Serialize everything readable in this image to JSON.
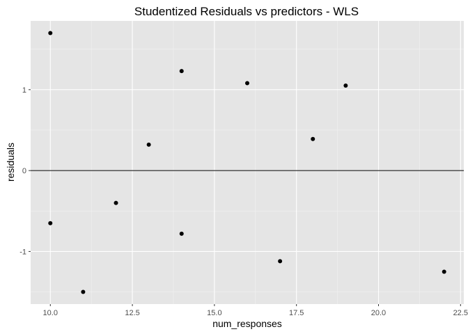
{
  "chart_data": {
    "type": "scatter",
    "title": "Studentized Residuals vs predictors - WLS",
    "xlabel": "num_responses",
    "ylabel": "residuals",
    "xlim": [
      9.4,
      22.6
    ],
    "ylim": [
      -1.65,
      1.85
    ],
    "x_ticks": [
      10.0,
      12.5,
      15.0,
      17.5,
      20.0,
      22.5
    ],
    "x_tick_labels": [
      "10.0",
      "12.5",
      "15.0",
      "17.5",
      "20.0",
      "22.5"
    ],
    "y_ticks": [
      -1,
      0,
      1
    ],
    "y_tick_labels": [
      "-1",
      "0",
      "1"
    ],
    "hline": 0,
    "grid": true,
    "colors": {
      "panel_background": "#e5e5e5",
      "grid_major": "#ffffff",
      "grid_minor": "#f2f2f2",
      "point": "#000000",
      "hline": "#000000"
    },
    "points": [
      {
        "x": 10,
        "y": 1.7
      },
      {
        "x": 10,
        "y": -0.65
      },
      {
        "x": 11,
        "y": -1.5
      },
      {
        "x": 12,
        "y": -0.4
      },
      {
        "x": 13,
        "y": 0.32
      },
      {
        "x": 14,
        "y": 1.23
      },
      {
        "x": 14,
        "y": -0.78
      },
      {
        "x": 16,
        "y": 1.08
      },
      {
        "x": 17,
        "y": -1.12
      },
      {
        "x": 18,
        "y": 0.39
      },
      {
        "x": 19,
        "y": 1.05
      },
      {
        "x": 22,
        "y": -1.25
      }
    ]
  }
}
